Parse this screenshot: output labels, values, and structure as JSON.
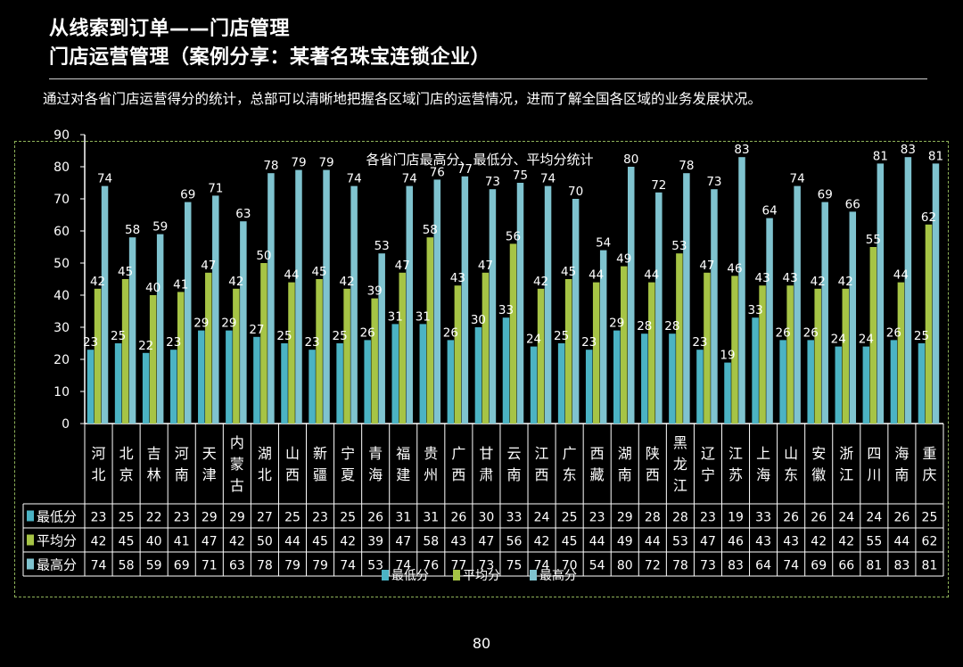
{
  "header": {
    "title_line1": "从线索到订单——门店管理",
    "title_line2": "门店运营管理（案例分享：某著名珠宝连锁企业）",
    "description": "通过对各省门店运营得分的统计，总部可以清晰地把握各区域门店的运营情况，进而了解全国各区域的业务发展状况。"
  },
  "page_number": "80",
  "colors": {
    "min": "#4bb3c4",
    "avg": "#a6c445",
    "max": "#7fc3cf",
    "frame": "#8fb35a",
    "axis": "#ffffff"
  },
  "chart_data": {
    "type": "bar",
    "title": "各省门店最高分、最低分、平均分统计",
    "categories": [
      "河北",
      "北京",
      "吉林",
      "河南",
      "天津",
      "内蒙古",
      "湖北",
      "山西",
      "新疆",
      "宁夏",
      "青海",
      "福建",
      "贵州",
      "广西",
      "甘肃",
      "云南",
      "江西",
      "广东",
      "西藏",
      "湖南",
      "陕西",
      "黑龙江",
      "辽宁",
      "江苏",
      "上海",
      "山东",
      "安徽",
      "浙江",
      "四川",
      "海南",
      "重庆"
    ],
    "series": [
      {
        "name": "最低分",
        "values": [
          23,
          25,
          22,
          23,
          29,
          29,
          27,
          25,
          23,
          25,
          26,
          31,
          31,
          26,
          30,
          33,
          24,
          25,
          23,
          29,
          28,
          28,
          23,
          19,
          33,
          26,
          26,
          24,
          24,
          26,
          25
        ]
      },
      {
        "name": "平均分",
        "values": [
          42,
          45,
          40,
          41,
          47,
          42,
          50,
          44,
          45,
          42,
          39,
          47,
          58,
          43,
          47,
          56,
          42,
          45,
          44,
          49,
          44,
          53,
          47,
          46,
          43,
          43,
          42,
          42,
          55,
          44,
          62
        ]
      },
      {
        "name": "最高分",
        "values": [
          74,
          58,
          59,
          69,
          71,
          63,
          78,
          79,
          79,
          74,
          53,
          74,
          76,
          77,
          73,
          75,
          74,
          70,
          54,
          80,
          72,
          78,
          73,
          83,
          64,
          74,
          69,
          66,
          81,
          83,
          81
        ]
      }
    ],
    "ylim": [
      0,
      90
    ],
    "yticks": [
      0,
      10,
      20,
      30,
      40,
      50,
      60,
      70,
      80,
      90
    ],
    "grid": false,
    "legend": "bottom-center",
    "data_table": true
  }
}
